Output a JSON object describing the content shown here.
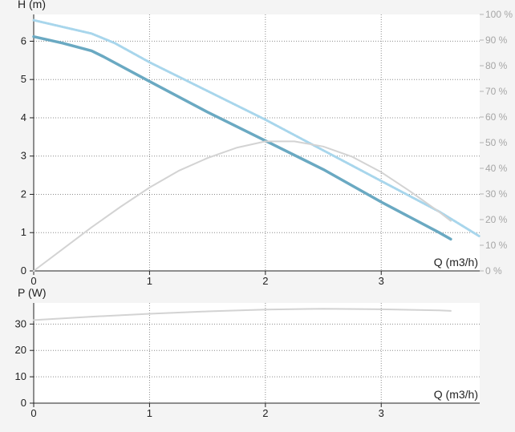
{
  "chart_data": [
    {
      "type": "line",
      "xlabel": "Q (m3/h)",
      "ylabel": "H (m)",
      "y2label": "",
      "xlim": [
        0,
        3.85
      ],
      "ylim": [
        0,
        6.7
      ],
      "y2lim": [
        0,
        100
      ],
      "x_ticks": [
        "0",
        "1",
        "2",
        "3"
      ],
      "y_ticks": [
        "0",
        "1",
        "2",
        "3",
        "4",
        "5",
        "6"
      ],
      "y2_ticks": [
        "0 %",
        "10 %",
        "20 %",
        "30 %",
        "40 %",
        "50 %",
        "60 %",
        "70 %",
        "80 %",
        "90 %",
        "100 %"
      ],
      "grid": true,
      "series": [
        {
          "color": "#6aa9c2",
          "axis": "left",
          "style": "solid-thick",
          "x": [
            0,
            0.25,
            0.5,
            0.6,
            1.0,
            1.5,
            2.0,
            2.5,
            3.0,
            3.5,
            3.6
          ],
          "y": [
            6.12,
            5.95,
            5.75,
            5.6,
            4.95,
            4.15,
            3.4,
            2.65,
            1.8,
            1.0,
            0.83
          ]
        },
        {
          "color": "#a8d6ec",
          "axis": "left",
          "style": "dotted",
          "x": [
            0,
            0.5,
            0.7,
            1.0,
            1.5,
            2.0,
            2.5,
            3.0,
            3.5,
            3.85
          ],
          "y": [
            6.55,
            6.2,
            5.95,
            5.45,
            4.7,
            3.95,
            3.15,
            2.35,
            1.55,
            0.9
          ]
        },
        {
          "color": "#d3d3d3",
          "axis": "right",
          "style": "solid",
          "x": [
            0,
            0.25,
            0.5,
            0.75,
            1.0,
            1.25,
            1.5,
            1.75,
            2.0,
            2.25,
            2.5,
            2.75,
            3.0,
            3.25,
            3.5,
            3.6
          ],
          "y": [
            0,
            8.5,
            17,
            25,
            32.5,
            39,
            44,
            48,
            50.5,
            50.5,
            48.5,
            44.5,
            38.5,
            31,
            23,
            19.5
          ]
        }
      ]
    },
    {
      "type": "line",
      "xlabel": "Q (m3/h)",
      "ylabel": "P (W)",
      "xlim": [
        0,
        3.85
      ],
      "ylim": [
        0,
        38
      ],
      "x_ticks": [
        "0",
        "1",
        "2",
        "3"
      ],
      "y_ticks": [
        "0",
        "10",
        "20",
        "30"
      ],
      "grid": true,
      "series": [
        {
          "color": "#d3d3d3",
          "axis": "left",
          "style": "solid",
          "x": [
            0,
            0.5,
            1.0,
            1.5,
            2.0,
            2.5,
            3.0,
            3.5,
            3.6
          ],
          "y": [
            31.5,
            32.8,
            33.9,
            34.8,
            35.5,
            35.8,
            35.6,
            35.2,
            35.0
          ]
        }
      ]
    }
  ]
}
